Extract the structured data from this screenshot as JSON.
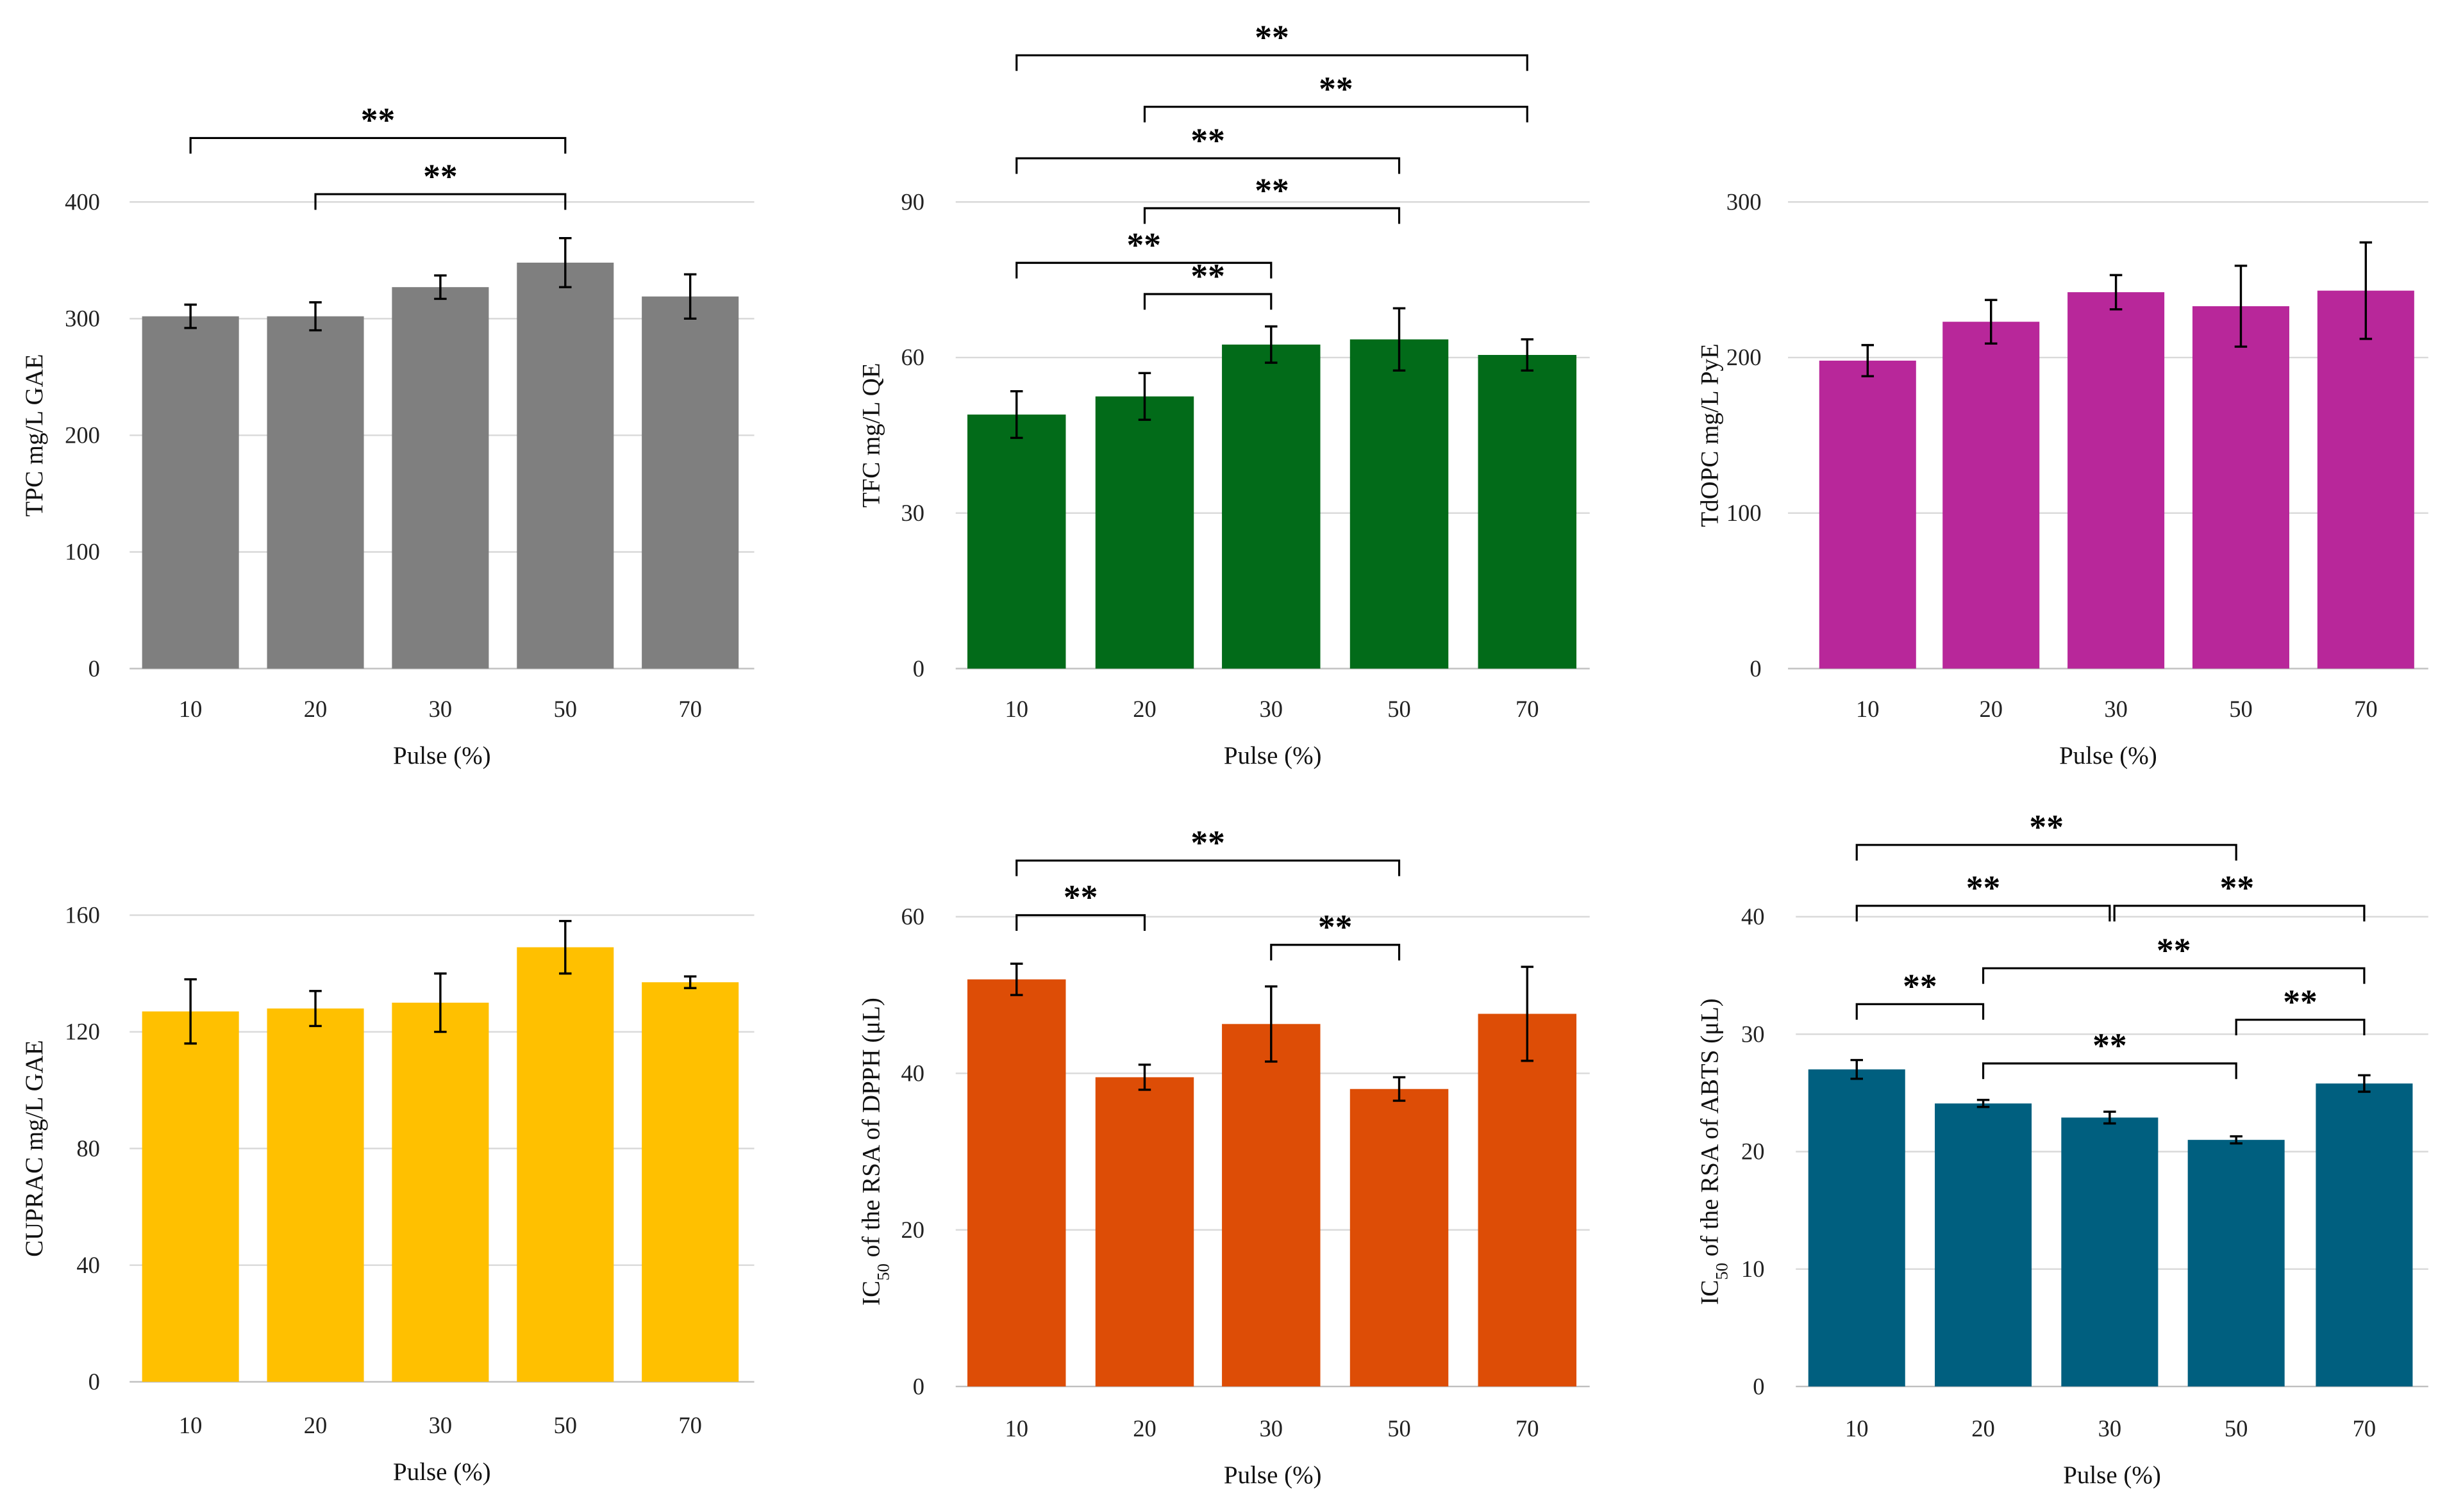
{
  "chart_data": [
    {
      "type": "bar",
      "title": "",
      "xlabel": "Pulse (%)",
      "ylabel": {
        "main": "TPC mg/L GAE"
      },
      "categories": [
        "10",
        "20",
        "30",
        "50",
        "70"
      ],
      "values": [
        302,
        302,
        327,
        348,
        319
      ],
      "errors": [
        10,
        12,
        10,
        21,
        19
      ],
      "ylim": [
        0,
        400
      ],
      "yticks": [
        "0",
        "100",
        "200",
        "300",
        "400"
      ],
      "color": "#7f7f7f",
      "grid": true,
      "significance": [
        {
          "pair": [
            "10",
            "50"
          ],
          "label": "**"
        },
        {
          "pair": [
            "20",
            "50"
          ],
          "label": "**"
        }
      ]
    },
    {
      "type": "bar",
      "title": "",
      "xlabel": "Pulse (%)",
      "ylabel": {
        "main": "TFC mg/L QE"
      },
      "categories": [
        "10",
        "20",
        "30",
        "50",
        "70"
      ],
      "values": [
        49,
        52.5,
        62.5,
        63.5,
        60.5
      ],
      "errors": [
        4.5,
        4.5,
        3.5,
        6,
        3
      ],
      "ylim": [
        0,
        90
      ],
      "yticks": [
        "0",
        "30",
        "60",
        "90"
      ],
      "color": "#026b19",
      "grid": true,
      "significance": [
        {
          "pair": [
            "10",
            "70"
          ],
          "label": "**"
        },
        {
          "pair": [
            "20",
            "70"
          ],
          "label": "**"
        },
        {
          "pair": [
            "10",
            "50"
          ],
          "label": "**"
        },
        {
          "pair": [
            "20",
            "50"
          ],
          "label": "**"
        },
        {
          "pair": [
            "10",
            "30"
          ],
          "label": "**"
        },
        {
          "pair": [
            "20",
            "30"
          ],
          "label": "**"
        }
      ]
    },
    {
      "type": "bar",
      "title": "",
      "xlabel": "Pulse (%)",
      "ylabel": {
        "main": "TdOPC mg/L PyE"
      },
      "categories": [
        "10",
        "20",
        "30",
        "50",
        "70"
      ],
      "values": [
        198,
        223,
        242,
        233,
        243
      ],
      "errors": [
        10,
        14,
        11,
        26,
        31
      ],
      "ylim": [
        0,
        300
      ],
      "yticks": [
        "0",
        "100",
        "200",
        "300"
      ],
      "color": "#b8279a",
      "grid": true,
      "significance": []
    },
    {
      "type": "bar",
      "title": "",
      "xlabel": "Pulse (%)",
      "ylabel": {
        "main": "CUPRAC mg/L GAE"
      },
      "categories": [
        "10",
        "20",
        "30",
        "50",
        "70"
      ],
      "values": [
        127,
        128,
        130,
        149,
        137
      ],
      "errors": [
        11,
        6,
        10,
        9,
        2
      ],
      "ylim": [
        0,
        160
      ],
      "yticks": [
        "0",
        "40",
        "80",
        "120",
        "160"
      ],
      "color": "#ffc000",
      "grid": true,
      "significance": []
    },
    {
      "type": "bar",
      "title": "",
      "xlabel": "Pulse (%)",
      "ylabel": {
        "main": "IC",
        "sub": "50",
        "rest": " of the RSA of DPPH (μL)"
      },
      "categories": [
        "10",
        "20",
        "30",
        "50",
        "70"
      ],
      "values": [
        52,
        39.5,
        46.3,
        38,
        47.6
      ],
      "errors": [
        2,
        1.6,
        4.8,
        1.5,
        6
      ],
      "ylim": [
        0,
        60
      ],
      "yticks": [
        "0",
        "20",
        "40",
        "60"
      ],
      "color": "#dd4d06",
      "grid": true,
      "significance": [
        {
          "pair": [
            "10",
            "50"
          ],
          "label": "**"
        },
        {
          "pair": [
            "10",
            "20"
          ],
          "label": "**"
        },
        {
          "pair": [
            "30",
            "50"
          ],
          "label": "**"
        }
      ]
    },
    {
      "type": "bar",
      "title": "",
      "xlabel": "Pulse (%)",
      "ylabel": {
        "main": "IC",
        "sub": "50",
        "rest": " of the RSA of ABTS (μL)"
      },
      "categories": [
        "10",
        "20",
        "30",
        "50",
        "70"
      ],
      "values": [
        27,
        24.1,
        22.9,
        21,
        25.8
      ],
      "errors": [
        0.8,
        0.3,
        0.5,
        0.3,
        0.7
      ],
      "ylim": [
        0,
        40
      ],
      "yticks": [
        "0",
        "10",
        "20",
        "30",
        "40"
      ],
      "color": "#005f7f",
      "grid": true,
      "significance": [
        {
          "pair": [
            "10",
            "50"
          ],
          "label": "**"
        },
        {
          "pair": [
            "10",
            "30"
          ],
          "label": "**"
        },
        {
          "pair": [
            "30",
            "70"
          ],
          "label": "**"
        },
        {
          "pair": [
            "20",
            "70"
          ],
          "label": "**"
        },
        {
          "pair": [
            "10",
            "20"
          ],
          "label": "**"
        },
        {
          "pair": [
            "50",
            "70"
          ],
          "label": "**"
        },
        {
          "pair": [
            "20",
            "50"
          ],
          "label": "**"
        }
      ]
    }
  ]
}
